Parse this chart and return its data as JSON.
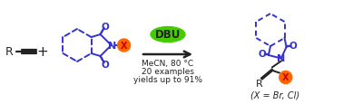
{
  "bg_color": "#ffffff",
  "blue_color": "#3333cc",
  "orange_color": "#ff6600",
  "green_color": "#44cc00",
  "red_color": "#cc0000",
  "black_color": "#222222",
  "gray_color": "#555555",
  "arrow_color": "#333333",
  "dbu_text": "DBU",
  "condition1": "MeCN, 80 °C",
  "condition2": "20 examples",
  "condition3": "yields up to 91%",
  "xlabel_text": "(X = Br, Cl)",
  "figsize": [
    3.78,
    1.16
  ],
  "dpi": 100
}
